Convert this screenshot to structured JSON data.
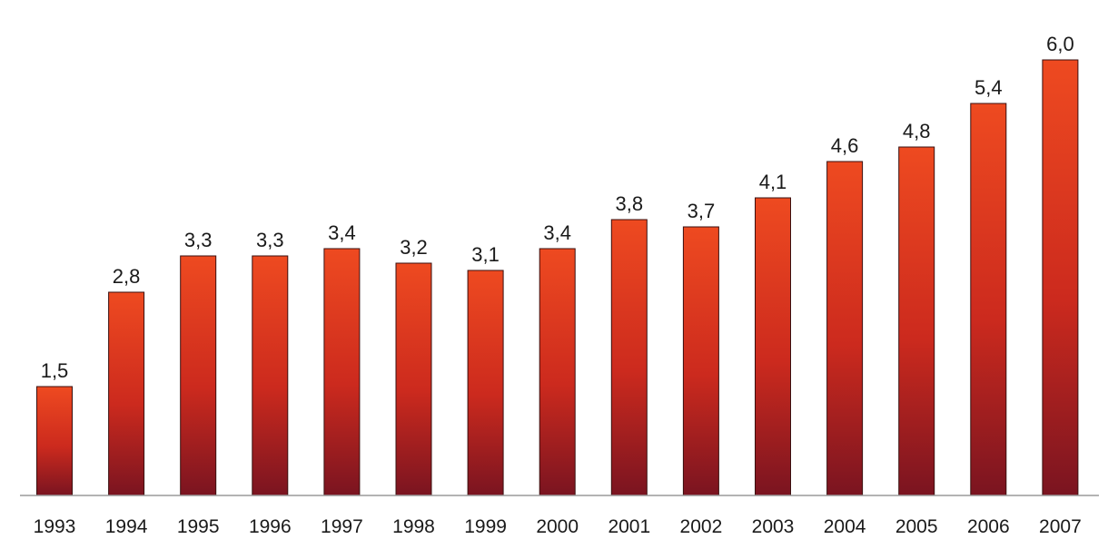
{
  "chart_data": {
    "type": "bar",
    "title": "",
    "xlabel": "",
    "ylabel": "",
    "categories": [
      "1993",
      "1994",
      "1995",
      "1996",
      "1997",
      "1998",
      "1999",
      "2000",
      "2001",
      "2002",
      "2003",
      "2004",
      "2005",
      "2006",
      "2007"
    ],
    "values": [
      1.5,
      2.8,
      3.3,
      3.3,
      3.4,
      3.2,
      3.1,
      3.4,
      3.8,
      3.7,
      4.1,
      4.6,
      4.8,
      5.4,
      6.0
    ],
    "value_labels": [
      "1,5",
      "2,8",
      "3,3",
      "3,3",
      "3,4",
      "3,2",
      "3,1",
      "3,4",
      "3,8",
      "3,7",
      "4,1",
      "4,6",
      "4,8",
      "5,4",
      "6,0"
    ],
    "ylim": [
      0,
      6.0
    ],
    "grid": false,
    "legend": "none",
    "colors": {
      "bar_top": "#ee4a20",
      "bar_mid": "#cc2a1e",
      "bar_bottom": "#7a1420",
      "axis": "#9a9a9a",
      "text": "#1a1a1a"
    }
  }
}
